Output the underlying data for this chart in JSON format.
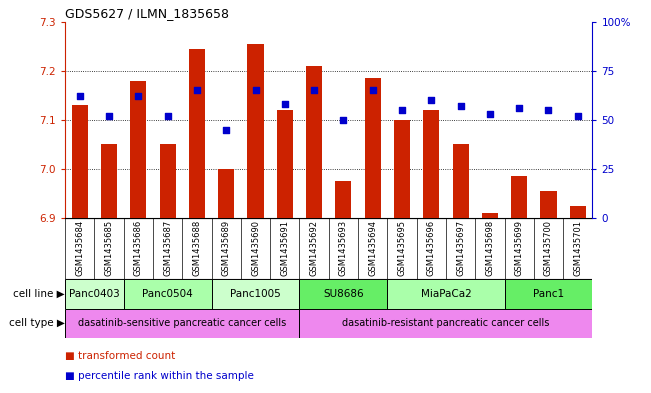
{
  "title": "GDS5627 / ILMN_1835658",
  "samples": [
    "GSM1435684",
    "GSM1435685",
    "GSM1435686",
    "GSM1435687",
    "GSM1435688",
    "GSM1435689",
    "GSM1435690",
    "GSM1435691",
    "GSM1435692",
    "GSM1435693",
    "GSM1435694",
    "GSM1435695",
    "GSM1435696",
    "GSM1435697",
    "GSM1435698",
    "GSM1435699",
    "GSM1435700",
    "GSM1435701"
  ],
  "bar_values": [
    7.13,
    7.05,
    7.18,
    7.05,
    7.245,
    7.0,
    7.255,
    7.12,
    7.21,
    6.975,
    7.185,
    7.1,
    7.12,
    7.05,
    6.91,
    6.985,
    6.955,
    6.925
  ],
  "percentile_values": [
    62,
    52,
    62,
    52,
    65,
    45,
    65,
    58,
    65,
    50,
    65,
    55,
    60,
    57,
    53,
    56,
    55,
    52
  ],
  "bar_bottom": 6.9,
  "ylim_left": [
    6.9,
    7.3
  ],
  "ylim_right": [
    0,
    100
  ],
  "yticks_left": [
    6.9,
    7.0,
    7.1,
    7.2,
    7.3
  ],
  "yticks_right": [
    0,
    25,
    50,
    75,
    100
  ],
  "ytick_labels_right": [
    "0",
    "25",
    "50",
    "75",
    "100%"
  ],
  "bar_color": "#cc2200",
  "dot_color": "#0000cc",
  "cell_lines": [
    {
      "name": "Panc0403",
      "start": 0,
      "end": 2,
      "color": "#ccffcc"
    },
    {
      "name": "Panc0504",
      "start": 2,
      "end": 5,
      "color": "#aaffaa"
    },
    {
      "name": "Panc1005",
      "start": 5,
      "end": 8,
      "color": "#ccffcc"
    },
    {
      "name": "SU8686",
      "start": 8,
      "end": 11,
      "color": "#66ee66"
    },
    {
      "name": "MiaPaCa2",
      "start": 11,
      "end": 15,
      "color": "#aaffaa"
    },
    {
      "name": "Panc1",
      "start": 15,
      "end": 18,
      "color": "#66ee66"
    }
  ],
  "cell_types": [
    {
      "name": "dasatinib-sensitive pancreatic cancer cells",
      "start": 0,
      "end": 8,
      "color": "#ee88ee"
    },
    {
      "name": "dasatinib-resistant pancreatic cancer cells",
      "start": 8,
      "end": 18,
      "color": "#ee88ee"
    }
  ],
  "label_cell_line": "cell line",
  "label_cell_type": "cell type",
  "legend_bar_label": "transformed count",
  "legend_dot_label": "percentile rank within the sample",
  "tick_color_left": "#cc2200",
  "tick_color_right": "#0000cc",
  "gridlines": [
    7.0,
    7.1,
    7.2
  ]
}
